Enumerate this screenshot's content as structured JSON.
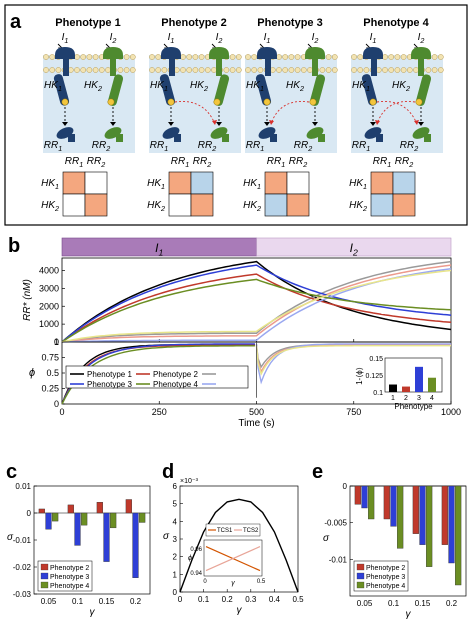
{
  "panel_letters": {
    "a": "a",
    "b": "b",
    "c": "c",
    "d": "d",
    "e": "e"
  },
  "panel_a": {
    "phenotypes": [
      "Phenotype 1",
      "Phenotype 2",
      "Phenotype 3",
      "Phenotype 4"
    ],
    "inputs": [
      "I1",
      "I2"
    ],
    "kinases": [
      "HK1",
      "HK2"
    ],
    "regulators": [
      "RR1",
      "RR2"
    ],
    "matrix_col_labels": [
      "RR1",
      "RR2"
    ],
    "matrix_row_labels": [
      "HK1",
      "HK2"
    ],
    "matrices": [
      [
        "orange",
        "white",
        "white",
        "orange"
      ],
      [
        "orange",
        "blue",
        "white",
        "orange"
      ],
      [
        "orange",
        "white",
        "blue",
        "orange"
      ],
      [
        "orange",
        "blue",
        "blue",
        "orange"
      ]
    ],
    "cross_talk": [
      {
        "hk1_to_rr2": false,
        "hk2_to_rr1": false
      },
      {
        "hk1_to_rr2": true,
        "hk2_to_rr1": false
      },
      {
        "hk1_to_rr2": false,
        "hk2_to_rr1": true
      },
      {
        "hk1_to_rr2": true,
        "hk2_to_rr1": true
      }
    ]
  },
  "colors": {
    "orange": "#f4a77f",
    "blue": "#b8d4ea",
    "bar_i1": "#a97bb8",
    "bar_i2": "#ead8ee",
    "hk1": "#1f3f6e",
    "hk2": "#4e8a2f",
    "membrane_bg": "#d9e8f3",
    "phenotype1": "#000000",
    "phenotype2": "#c0392b",
    "phenotype3": "#2e3fd6",
    "phenotype4": "#6b8e23",
    "rr2_phenotype1": "#9a9a9a",
    "rr2_phenotype2": "#ec9a8c",
    "rr2_phenotype3": "#9aa8f0",
    "rr2_phenotype4": "#e8e58a",
    "d_curve": "#000000",
    "d_inset_line1": "#d35400",
    "d_inset_line2": "#e8a598"
  },
  "chart_data": [
    {
      "id": "b-top",
      "type": "line",
      "title": "",
      "input_bar_labels": [
        "I1",
        "I2"
      ],
      "xlabel": "",
      "ylabel": "RR* (nM)",
      "xlim": [
        0,
        1000
      ],
      "ylim": [
        0,
        4700
      ],
      "yticks": [
        0,
        1000,
        2000,
        3000,
        4000
      ],
      "switch_time": 500,
      "series": [
        {
          "name": "Phenotype 1",
          "rr1_peak": 4500,
          "rr1_end": 700,
          "rr2_plateau": 500,
          "rr2_end": 4500
        },
        {
          "name": "Phenotype 2",
          "rr1_peak": 3800,
          "rr1_end": 1100,
          "rr2_plateau": 350,
          "rr2_end": 4300
        },
        {
          "name": "Phenotype 3",
          "rr1_peak": 4300,
          "rr1_end": 1500,
          "rr2_plateau": 100,
          "rr2_end": 4100
        },
        {
          "name": "Phenotype 4",
          "rr1_peak": 3500,
          "rr1_end": 1800,
          "rr2_plateau": 600,
          "rr2_end": 4000
        }
      ]
    },
    {
      "id": "b-bottom",
      "type": "line",
      "xlabel": "Time (s)",
      "ylabel": "ϕ",
      "xlim": [
        0,
        1000
      ],
      "ylim": [
        0,
        1
      ],
      "xticks": [
        0,
        250,
        500,
        750,
        1000
      ],
      "yticks": [
        0,
        0.25,
        0.5,
        0.75,
        1
      ],
      "legend": [
        "Phenotype 1",
        "Phenotype 2",
        "",
        "Phenotype 3",
        "Phenotype 4",
        ""
      ],
      "series": [
        {
          "name": "Phenotype 1",
          "plateau": 0.96,
          "dip": 0.45
        },
        {
          "name": "Phenotype 2",
          "plateau": 0.95,
          "dip": 0.35
        },
        {
          "name": "Phenotype 3",
          "plateau": 0.97,
          "dip": 0.1
        },
        {
          "name": "Phenotype 4",
          "plateau": 0.94,
          "dip": 0.3
        }
      ],
      "inset": {
        "type": "bar",
        "ylabel": "1-⟨ϕ⟩",
        "xlabel": "Phenotype",
        "categories": [
          "1",
          "2",
          "3",
          "4"
        ],
        "values": [
          0.111,
          0.108,
          0.137,
          0.121
        ],
        "ylim": [
          0.1,
          0.15
        ],
        "yticks": [
          0.1,
          0.125,
          0.15
        ]
      }
    },
    {
      "id": "c",
      "type": "bar",
      "xlabel": "γ",
      "ylabel": "σ",
      "categories": [
        "0.05",
        "0.1",
        "0.15",
        "0.2"
      ],
      "ylim": [
        -0.03,
        0.01
      ],
      "yticks": [
        0.01,
        0,
        -0.01,
        -0.02,
        -0.03
      ],
      "series": [
        {
          "name": "Phenotype 2",
          "values": [
            0.0015,
            0.003,
            0.004,
            0.005
          ]
        },
        {
          "name": "Phenotype 3",
          "values": [
            -0.006,
            -0.012,
            -0.018,
            -0.024
          ]
        },
        {
          "name": "Phenotype 4",
          "values": [
            -0.003,
            -0.0045,
            -0.0055,
            -0.0035
          ]
        }
      ]
    },
    {
      "id": "d",
      "type": "line",
      "xlabel": "γ",
      "ylabel": "σ",
      "exponent_label": "×10⁻³",
      "xlim": [
        0,
        0.5
      ],
      "ylim": [
        0,
        6
      ],
      "xticks": [
        0,
        0.1,
        0.2,
        0.3,
        0.4,
        0.5
      ],
      "yticks": [
        0,
        1,
        2,
        3,
        4,
        5,
        6
      ],
      "series": [
        {
          "x": [
            0,
            0.05,
            0.1,
            0.15,
            0.2,
            0.25,
            0.3,
            0.35,
            0.4,
            0.45,
            0.5
          ],
          "values": [
            0,
            1.8,
            3.4,
            4.5,
            5.1,
            5.25,
            5.1,
            4.5,
            3.4,
            1.8,
            0
          ]
        }
      ],
      "inset": {
        "legend": [
          "TCS1",
          "TCS2"
        ],
        "ylabel": "ϕ",
        "xlabel": "γ",
        "xticks": [
          0,
          0.5
        ],
        "yticks": [
          0.94,
          0.96
        ],
        "series": [
          {
            "name": "TCS1",
            "values": [
              0.962,
              0.942
            ]
          },
          {
            "name": "TCS2",
            "values": [
              0.942,
              0.962
            ]
          }
        ]
      }
    },
    {
      "id": "e",
      "type": "bar",
      "xlabel": "γ",
      "ylabel": "σ",
      "categories": [
        "0.05",
        "0.1",
        "0.15",
        "0.2"
      ],
      "ylim": [
        -0.015,
        0
      ],
      "yticks": [
        0,
        -0.005,
        -0.01
      ],
      "series": [
        {
          "name": "Phenotype 2",
          "values": [
            -0.0025,
            -0.0045,
            -0.0065,
            -0.008
          ]
        },
        {
          "name": "Phenotype 3",
          "values": [
            -0.003,
            -0.0055,
            -0.008,
            -0.0105
          ]
        },
        {
          "name": "Phenotype 4",
          "values": [
            -0.0045,
            -0.0085,
            -0.011,
            -0.0135
          ]
        }
      ]
    }
  ]
}
